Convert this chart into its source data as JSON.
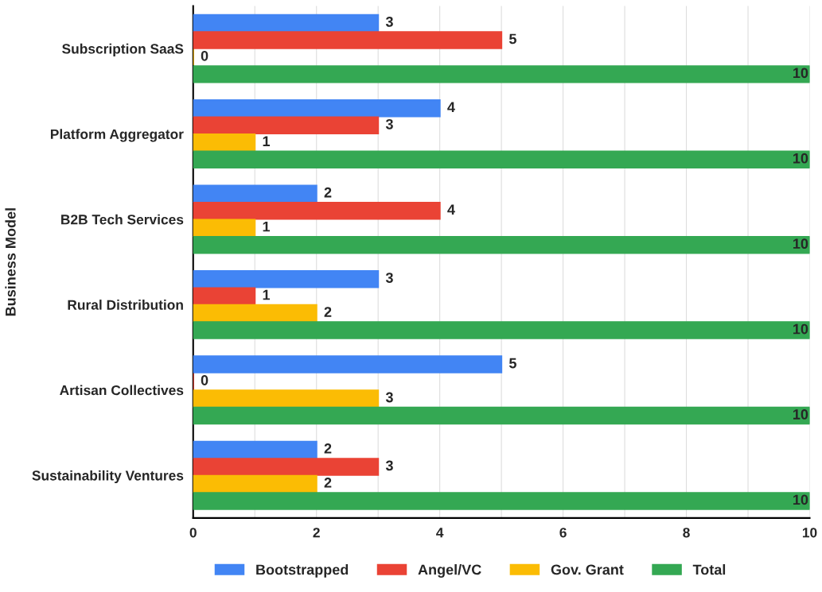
{
  "chart_data": {
    "type": "bar",
    "orientation": "horizontal",
    "ylabel": "Business Model",
    "categories": [
      "Subscription SaaS",
      "Platform Aggregator",
      "B2B Tech Services",
      "Rural Distribution",
      "Artisan Collectives",
      "Sustainability Ventures"
    ],
    "series": [
      {
        "name": "Bootstrapped",
        "color": "#4285f4",
        "values": [
          3,
          4,
          2,
          3,
          5,
          2
        ]
      },
      {
        "name": "Angel/VC",
        "color": "#ea4335",
        "values": [
          5,
          3,
          4,
          1,
          0,
          3
        ]
      },
      {
        "name": "Gov. Grant",
        "color": "#fbbc04",
        "values": [
          0,
          1,
          1,
          2,
          3,
          2
        ]
      },
      {
        "name": "Total",
        "color": "#34a853",
        "values": [
          10,
          10,
          10,
          10,
          10,
          10
        ]
      }
    ],
    "xlim": [
      0,
      10
    ],
    "xticks": [
      0,
      {
        "value": 1,
        "label": null
      },
      2,
      {
        "value": 3,
        "label": null
      },
      4,
      {
        "value": 5,
        "label": null
      },
      6,
      {
        "value": 7,
        "label": null
      },
      8,
      {
        "value": 9,
        "label": null
      },
      10
    ],
    "grid": "x",
    "legend": "bottom",
    "data_labels": true
  }
}
